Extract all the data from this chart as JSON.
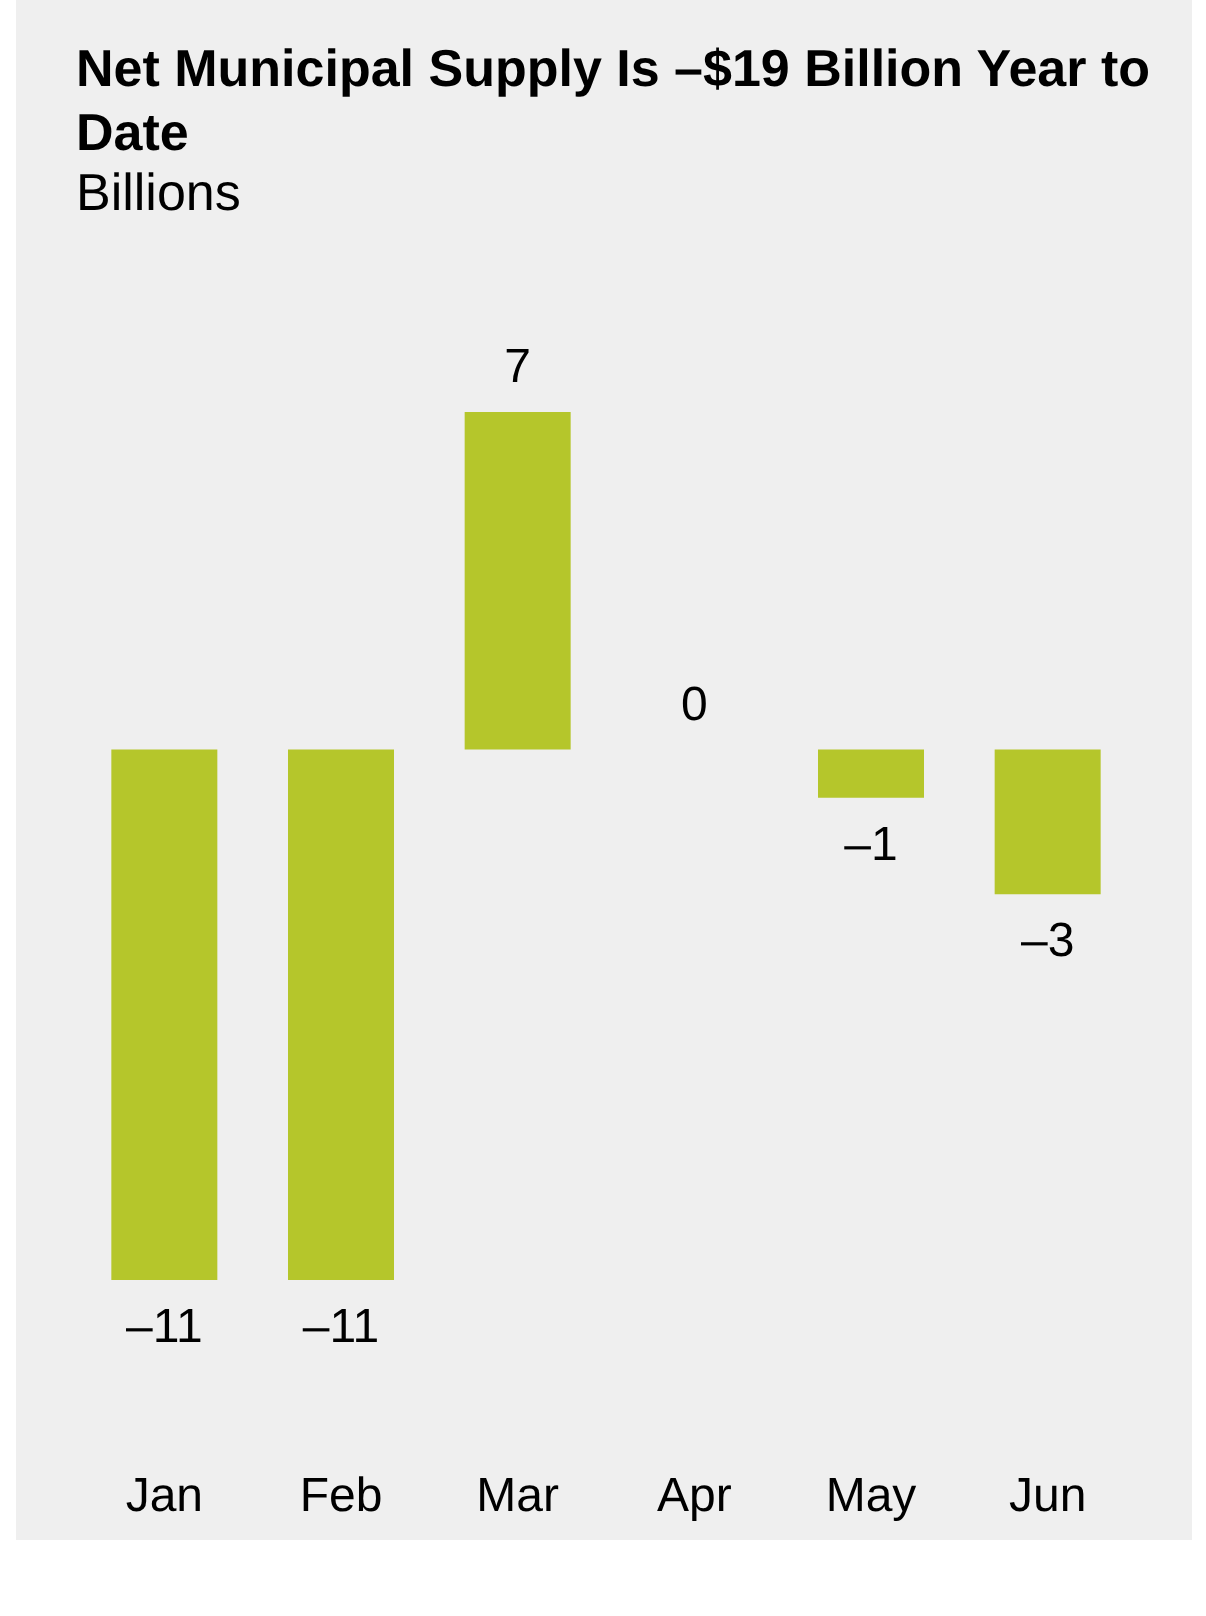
{
  "chart_data": {
    "type": "bar",
    "title": "Net Municipal Supply Is –$19 Billion Year to Date",
    "subtitle": "Billions",
    "categories": [
      "Jan",
      "Feb",
      "Mar",
      "Apr",
      "May",
      "Jun"
    ],
    "values": [
      -11,
      -11,
      7,
      0,
      -1,
      -3
    ],
    "value_labels": [
      "–11",
      "–11",
      "7",
      "0",
      "–1",
      "–3"
    ],
    "color": "#b5c62b"
  }
}
